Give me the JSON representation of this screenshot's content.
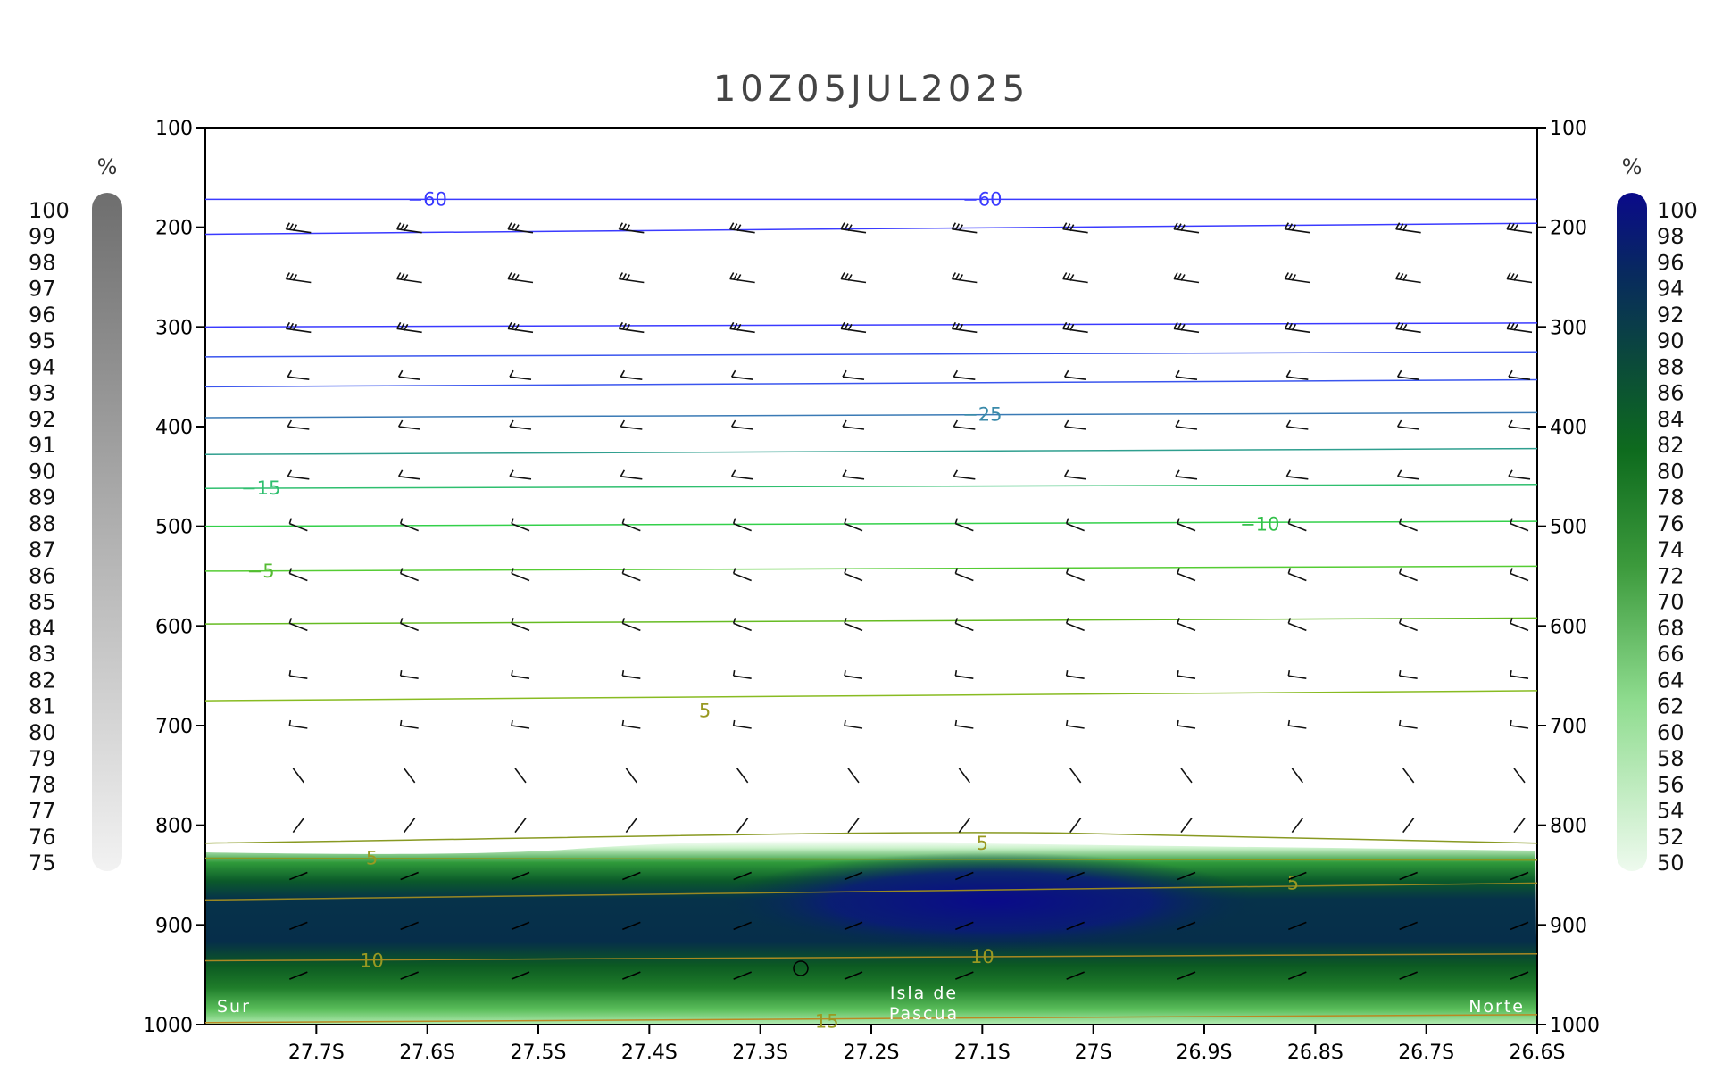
{
  "chart_data": {
    "type": "heatmap",
    "title": "10Z05JUL2025",
    "x_ticks": [
      "27.7S",
      "27.6S",
      "27.5S",
      "27.4S",
      "27.3S",
      "27.2S",
      "27.1S",
      "27S",
      "26.9S",
      "26.8S",
      "26.7S",
      "26.6S"
    ],
    "x_tick_values": [
      -27.7,
      -27.6,
      -27.5,
      -27.4,
      -27.3,
      -27.2,
      -27.1,
      -27.0,
      -26.9,
      -26.8,
      -26.7,
      -26.6
    ],
    "xlim": [
      -27.8,
      -26.6
    ],
    "y_ticks": [
      "100",
      "200",
      "300",
      "400",
      "500",
      "600",
      "700",
      "800",
      "900",
      "1000"
    ],
    "ylim": [
      1000,
      100
    ],
    "annotations": {
      "left": "Sur",
      "center_line1": "Isla de",
      "center_line2": "Pascua",
      "right": "Norte"
    },
    "left_colorbar": {
      "unit": "%",
      "levels": [
        "100",
        "99",
        "98",
        "97",
        "96",
        "95",
        "94",
        "93",
        "92",
        "91",
        "90",
        "89",
        "88",
        "87",
        "86",
        "85",
        "84",
        "83",
        "82",
        "81",
        "80",
        "79",
        "78",
        "77",
        "76",
        "75"
      ]
    },
    "right_colorbar": {
      "unit": "%",
      "levels": [
        "100",
        "98",
        "96",
        "94",
        "92",
        "90",
        "88",
        "86",
        "84",
        "82",
        "80",
        "78",
        "76",
        "74",
        "72",
        "70",
        "68",
        "66",
        "64",
        "62",
        "60",
        "58",
        "56",
        "54",
        "52",
        "50"
      ]
    },
    "isotherm_labels": [
      {
        "text": "−60",
        "lon": -27.6,
        "p": 172
      },
      {
        "text": "−60",
        "lon": -27.1,
        "p": 172
      },
      {
        "text": "−25",
        "lon": -27.1,
        "p": 388
      },
      {
        "text": "−15",
        "lon": -27.75,
        "p": 462
      },
      {
        "text": "−10",
        "lon": -26.85,
        "p": 498
      },
      {
        "text": "−5",
        "lon": -27.75,
        "p": 545
      },
      {
        "text": "5",
        "lon": -27.35,
        "p": 685
      },
      {
        "text": "5",
        "lon": -27.65,
        "p": 833
      },
      {
        "text": "5",
        "lon": -27.1,
        "p": 818
      },
      {
        "text": "5",
        "lon": -26.82,
        "p": 858
      },
      {
        "text": "10",
        "lon": -27.65,
        "p": 936
      },
      {
        "text": "10",
        "lon": -27.1,
        "p": 932
      },
      {
        "text": "15",
        "lon": -27.24,
        "p": 997
      }
    ]
  }
}
